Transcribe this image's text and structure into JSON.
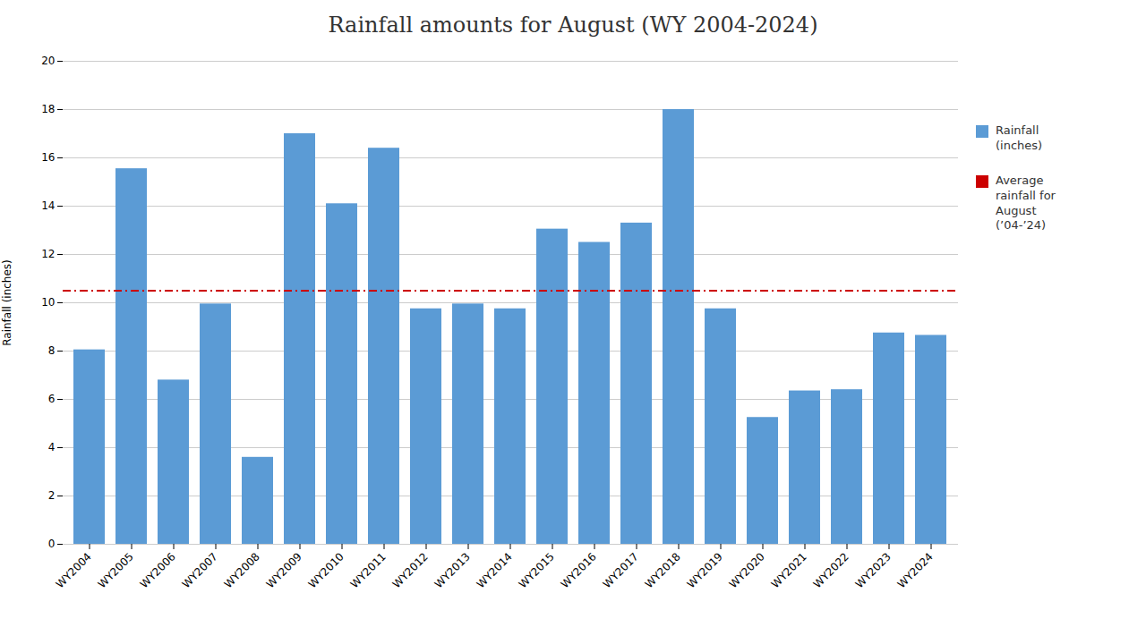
{
  "chart_data": {
    "type": "bar",
    "title": "Rainfall amounts for August (WY 2004-2024)",
    "ylabel": "Rainfall (inches)",
    "categories": [
      "WY2004",
      "WY2005",
      "WY2006",
      "WY2007",
      "WY2008",
      "WY2009",
      "WY2010",
      "WY2011",
      "WY2012",
      "WY2013",
      "WY2014",
      "WY2015",
      "WY2016",
      "WY2017",
      "WY2018",
      "WY2019",
      "WY2020",
      "WY2021",
      "WY2022",
      "WY2023",
      "WY2024"
    ],
    "series": [
      {
        "name": "Rainfall\n(inches)",
        "type": "bar",
        "color": "#5B9BD5",
        "values": [
          8.05,
          15.55,
          6.8,
          9.95,
          3.6,
          17.0,
          14.1,
          16.4,
          9.75,
          9.95,
          9.75,
          13.05,
          12.5,
          13.3,
          18.0,
          9.75,
          5.25,
          6.35,
          6.4,
          8.75,
          8.65
        ]
      }
    ],
    "average_line": {
      "name": "Average\nrainfall for\nAugust\n(’04-’24)",
      "value": 10.5,
      "color": "#CC0000",
      "line_style": "dashdot"
    },
    "ylim": [
      0,
      20
    ],
    "yticks": [
      0,
      2,
      4,
      6,
      8,
      10,
      12,
      14,
      16,
      18,
      20
    ],
    "grid": true,
    "legend": "upper right"
  }
}
